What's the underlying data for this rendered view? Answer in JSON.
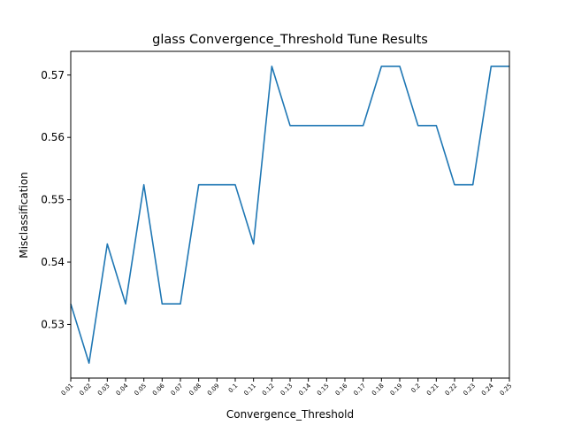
{
  "chart_data": {
    "type": "line",
    "title": "glass Convergence_Threshold Tune Results",
    "xlabel": "Convergence_Threshold",
    "ylabel": "Misclassification",
    "categories": [
      "0.01",
      "0.02",
      "0.03",
      "0.04",
      "0.05",
      "0.06",
      "0.07",
      "0.08",
      "0.09",
      "0.1",
      "0.11",
      "0.12",
      "0.13",
      "0.14",
      "0.15",
      "0.16",
      "0.17",
      "0.18",
      "0.19",
      "0.2",
      "0.21",
      "0.22",
      "0.23",
      "0.24",
      "0.25"
    ],
    "series": [
      {
        "values": [
          0.5333,
          0.5238,
          0.5429,
          0.5333,
          0.5524,
          0.5333,
          0.5333,
          0.5524,
          0.5524,
          0.5524,
          0.5429,
          0.5714,
          0.5619,
          0.5619,
          0.5619,
          0.5619,
          0.5619,
          0.5714,
          0.5714,
          0.5619,
          0.5619,
          0.5524,
          0.5524,
          0.5714,
          0.5714
        ],
        "color": "#1f77b4"
      }
    ],
    "ylim": [
      0.5214,
      0.5738
    ],
    "yticks": [
      "0.53",
      "0.54",
      "0.55",
      "0.56",
      "0.57"
    ],
    "grid": false,
    "legend": "none"
  }
}
